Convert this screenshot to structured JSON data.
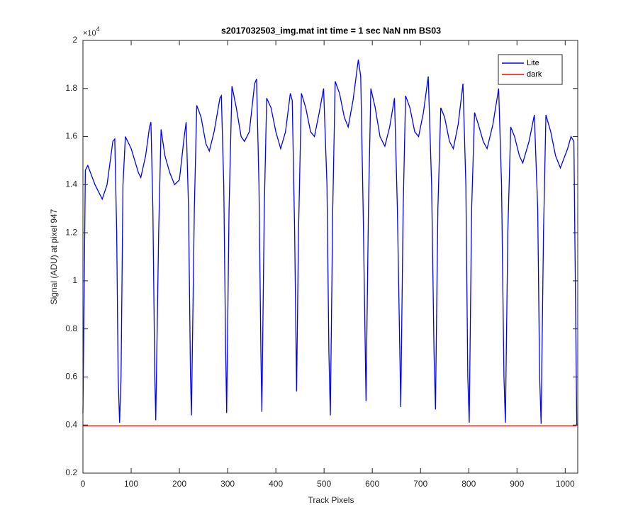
{
  "chart_data": {
    "type": "line",
    "title": "s2017032503_img.mat int time = 1 sec  NaN nm BS03",
    "xlabel": "Track Pixels",
    "ylabel": "Signal (ADU) at pixel 947",
    "y_exponent": {
      "base": "×10",
      "power": "4"
    },
    "xlim": [
      0,
      1026
    ],
    "ylim": [
      0.2,
      2
    ],
    "xticks": [
      0,
      100,
      200,
      300,
      400,
      500,
      600,
      700,
      800,
      900,
      1000
    ],
    "yticks": [
      0.2,
      0.4,
      0.6,
      0.8,
      1,
      1.2,
      1.4,
      1.6,
      1.8,
      2
    ],
    "legend": "top-right",
    "series": [
      {
        "name": "Lite",
        "color": "#0000ff",
        "x": [
          0,
          5,
          10,
          25,
          40,
          50,
          62,
          66,
          70,
          73,
          76,
          79,
          83,
          88,
          100,
          115,
          120,
          130,
          138,
          141,
          145,
          149,
          151,
          157,
          162,
          170,
          180,
          190,
          200,
          210,
          214,
          219,
          223,
          225,
          231,
          236,
          245,
          255,
          262,
          272,
          284,
          287,
          292,
          296,
          298,
          303,
          309,
          318,
          328,
          335,
          345,
          356,
          360,
          365,
          369,
          371,
          376,
          381,
          390,
          400,
          410,
          420,
          430,
          434,
          439,
          443,
          447,
          453,
          462,
          472,
          480,
          490,
          499,
          506,
          510,
          513,
          518,
          523,
          532,
          542,
          550,
          560,
          571,
          576,
          581,
          587,
          592,
          597,
          606,
          616,
          626,
          636,
          646,
          652,
          659,
          664,
          669,
          678,
          688,
          696,
          706,
          716,
          723,
          728,
          731,
          736,
          742,
          750,
          760,
          768,
          778,
          788,
          794,
          798,
          801,
          806,
          812,
          820,
          830,
          838,
          850,
          862,
          868,
          873,
          876,
          881,
          887,
          895,
          905,
          912,
          925,
          936,
          943,
          947,
          950,
          955,
          960,
          970,
          980,
          990,
          1005,
          1012,
          1018,
          1022,
          1024
        ],
        "values": [
          0.45,
          1.46,
          1.48,
          1.4,
          1.34,
          1.4,
          1.58,
          1.59,
          1.2,
          0.6,
          0.41,
          0.6,
          1.4,
          1.6,
          1.55,
          1.45,
          1.43,
          1.52,
          1.64,
          1.66,
          1.3,
          0.6,
          0.42,
          1.2,
          1.63,
          1.52,
          1.45,
          1.4,
          1.42,
          1.6,
          1.66,
          1.3,
          0.6,
          0.44,
          1.3,
          1.73,
          1.68,
          1.57,
          1.54,
          1.62,
          1.76,
          1.77,
          1.4,
          0.7,
          0.45,
          1.3,
          1.81,
          1.72,
          1.6,
          1.58,
          1.62,
          1.82,
          1.84,
          1.4,
          0.7,
          0.455,
          1.3,
          1.76,
          1.72,
          1.62,
          1.55,
          1.62,
          1.78,
          1.75,
          1.2,
          0.54,
          1.2,
          1.78,
          1.72,
          1.62,
          1.6,
          1.7,
          1.8,
          1.4,
          0.7,
          0.44,
          1.3,
          1.83,
          1.78,
          1.68,
          1.64,
          1.75,
          1.92,
          1.85,
          1.3,
          0.5,
          1.3,
          1.8,
          1.72,
          1.6,
          1.56,
          1.64,
          1.76,
          1.3,
          0.475,
          1.3,
          1.77,
          1.72,
          1.62,
          1.6,
          1.7,
          1.85,
          1.4,
          0.7,
          0.465,
          1.3,
          1.72,
          1.68,
          1.58,
          1.55,
          1.65,
          1.82,
          1.4,
          0.6,
          0.41,
          1.3,
          1.7,
          1.65,
          1.58,
          1.55,
          1.65,
          1.8,
          1.4,
          0.6,
          0.41,
          1.2,
          1.64,
          1.6,
          1.52,
          1.49,
          1.58,
          1.69,
          1.3,
          0.6,
          0.405,
          1.2,
          1.69,
          1.62,
          1.52,
          1.47,
          1.55,
          1.6,
          1.58,
          0.8,
          0.4
        ]
      },
      {
        "name": "dark",
        "color": "#ff0000",
        "x": [
          0,
          1024
        ],
        "values": [
          0.397,
          0.397
        ]
      }
    ]
  }
}
